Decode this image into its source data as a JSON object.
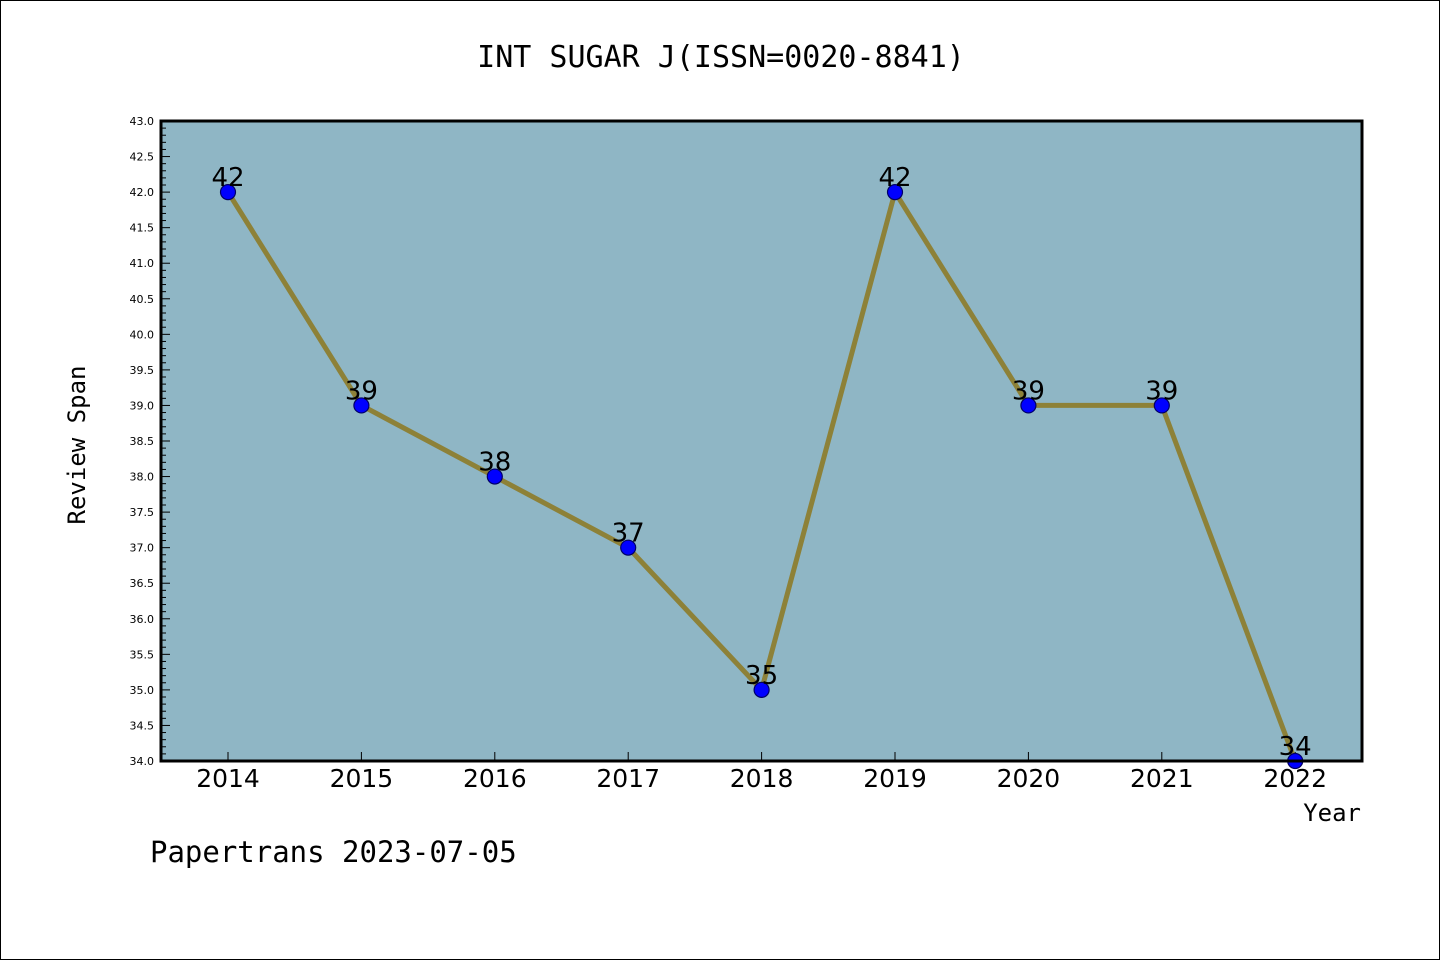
{
  "chart_data": {
    "type": "line",
    "title": "INT SUGAR J(ISSN=0020-8841)",
    "xlabel": "Year",
    "ylabel": "Review Span",
    "categories": [
      "2014",
      "2015",
      "2016",
      "2017",
      "2018",
      "2019",
      "2020",
      "2021",
      "2022"
    ],
    "values": [
      42,
      39,
      38,
      37,
      35,
      42,
      39,
      39,
      34
    ],
    "data_labels": [
      "42",
      "39",
      "38",
      "37",
      "35",
      "42",
      "39",
      "39",
      "34"
    ],
    "ylim": [
      34.0,
      43.0
    ],
    "y_ticks": [
      "34.0",
      "34.5",
      "35.0",
      "35.5",
      "36.0",
      "36.5",
      "37.0",
      "37.5",
      "38.0",
      "38.5",
      "39.0",
      "39.5",
      "40.0",
      "40.5",
      "41.0",
      "41.5",
      "42.0",
      "42.5",
      "43.0"
    ],
    "grid": false,
    "legend": "none",
    "colors": {
      "plot_background": "#8fb6c5",
      "line": "#8d8138",
      "marker": "#0000ff",
      "marker_edge": "#000066",
      "text": "#000000"
    }
  },
  "footer": {
    "note": "Papertrans 2023-07-05"
  }
}
